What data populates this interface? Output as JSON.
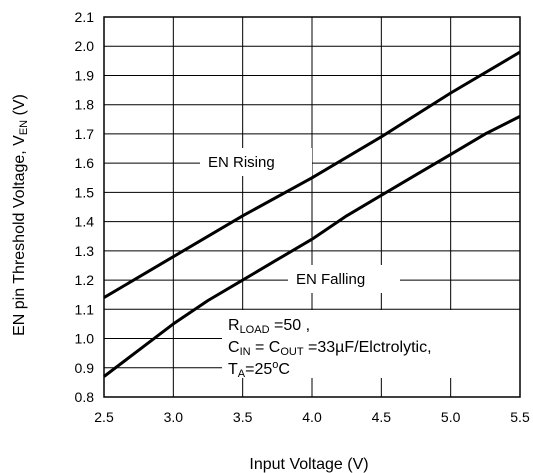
{
  "chart_data": {
    "type": "line",
    "title": "",
    "xlabel": "Input Voltage (V)",
    "ylabel": {
      "main": "EN pin Threshold Voltage, V",
      "sub": "EN",
      "unit": " (V)"
    },
    "xlim": [
      2.5,
      5.5
    ],
    "ylim": [
      0.8,
      2.1
    ],
    "xticks": [
      "2.5",
      "3.0",
      "3.5",
      "4.0",
      "4.5",
      "5.0",
      "5.5"
    ],
    "yticks": [
      "0.8",
      "0.9",
      "1.0",
      "1.1",
      "1.2",
      "1.3",
      "1.4",
      "1.5",
      "1.6",
      "1.7",
      "1.8",
      "1.9",
      "2.0",
      "2.1"
    ],
    "grid": true,
    "series": [
      {
        "name": "EN Rising",
        "x": [
          2.5,
          3.0,
          3.5,
          4.0,
          4.5,
          5.0,
          5.5
        ],
        "y": [
          1.14,
          1.28,
          1.42,
          1.55,
          1.69,
          1.84,
          1.98
        ]
      },
      {
        "name": "EN Falling",
        "x": [
          2.5,
          2.75,
          3.0,
          3.25,
          3.5,
          3.75,
          4.0,
          4.25,
          4.5,
          4.75,
          5.0,
          5.25,
          5.5
        ],
        "y": [
          0.87,
          0.96,
          1.05,
          1.13,
          1.2,
          1.27,
          1.34,
          1.42,
          1.49,
          1.56,
          1.63,
          1.7,
          1.76
        ]
      }
    ],
    "conditions": {
      "line1": {
        "r": "R",
        "r_sub": "LOAD",
        "rest": " =50     ,"
      },
      "line2": {
        "c": "C",
        "c_in_sub": "IN",
        "mid": " = C",
        "c_out_sub": "OUT",
        "rest": " =33µF/Elctrolytic,"
      },
      "line3": {
        "t": "T",
        "t_sub": "A",
        "eq": "=25",
        "deg": "o",
        "unit": "C"
      }
    }
  }
}
